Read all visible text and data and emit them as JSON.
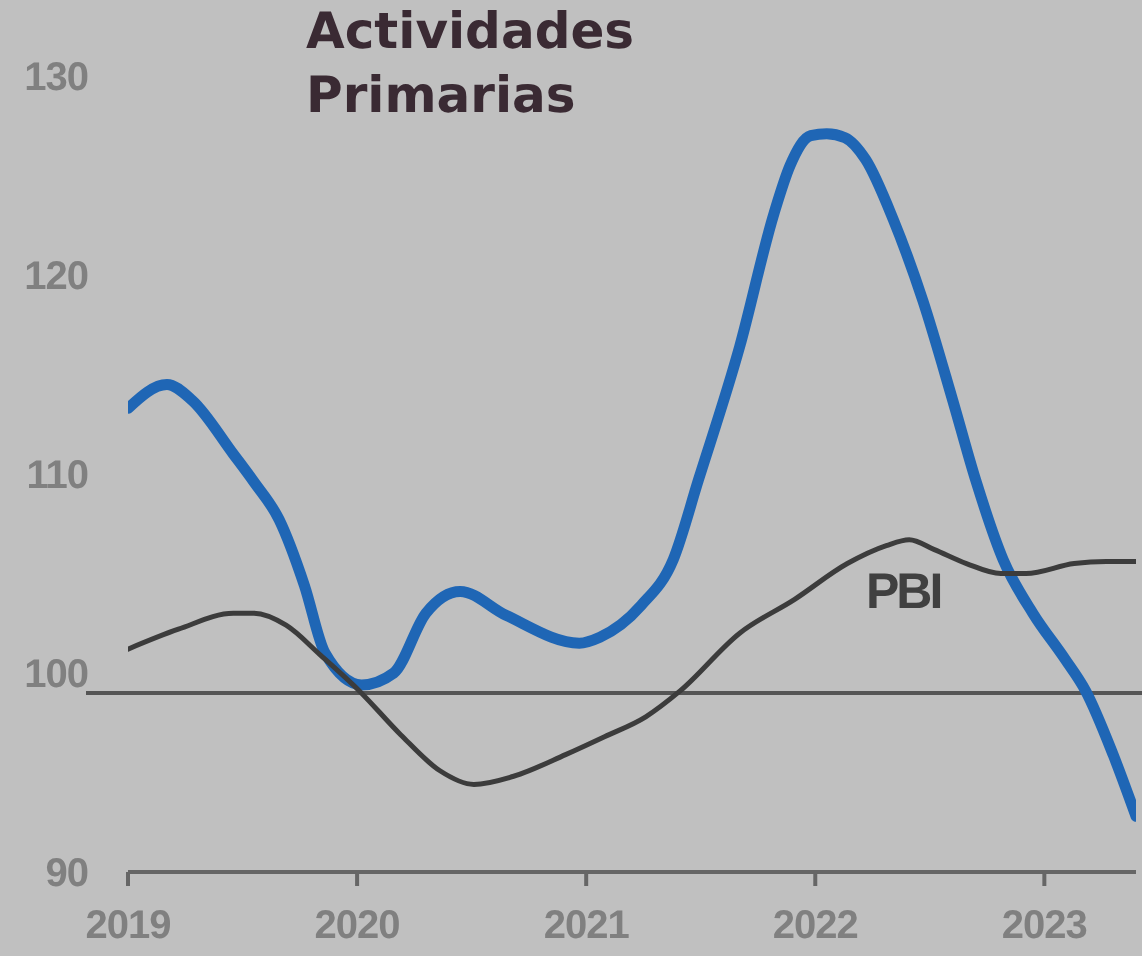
{
  "chart_data": {
    "type": "line",
    "title": "Actividades Primarias",
    "xlim": [
      2019,
      2023.4
    ],
    "xticks": [
      2019,
      2020,
      2021,
      2022,
      2023
    ],
    "ylim": [
      90,
      130
    ],
    "yticks": [
      90,
      100,
      110,
      120,
      130
    ],
    "ref_lines": [
      {
        "axis": "y",
        "value": 99,
        "color": "#555555"
      }
    ],
    "series": [
      {
        "color": "#1f66b5",
        "x": [
          2019.0,
          2019.17,
          2019.28,
          2019.46,
          2019.55,
          2019.66,
          2019.77,
          2019.86,
          2020.02,
          2020.16,
          2020.3,
          2020.45,
          2020.65,
          2020.97,
          2021.06,
          2021.24,
          2021.38,
          2021.49,
          2021.67,
          2021.82,
          2021.89,
          2021.98,
          2022.05,
          2022.13,
          2022.22,
          2022.34,
          2022.47,
          2022.6,
          2022.7,
          2022.82,
          2022.95,
          2023.09,
          2023.18,
          2023.3,
          2023.4
        ],
        "values": [
          113.3,
          114.5,
          113.7,
          111.0,
          109.6,
          107.7,
          104.4,
          101.0,
          99.4,
          100.0,
          103.0,
          104.1,
          102.9,
          101.5,
          101.8,
          103.4,
          105.7,
          109.7,
          116.4,
          123.1,
          125.5,
          127.0,
          127.1,
          126.9,
          125.8,
          122.8,
          118.7,
          113.7,
          109.7,
          105.7,
          103.0,
          100.7,
          99.1,
          95.9,
          92.8
        ]
      },
      {
        "name": "PBI",
        "color": "#3c3c3c",
        "x": [
          2019.0,
          2019.22,
          2019.46,
          2019.55,
          2019.69,
          2019.84,
          2020.01,
          2020.19,
          2020.36,
          2020.51,
          2020.68,
          2020.91,
          2021.08,
          2021.26,
          2021.41,
          2021.67,
          2021.91,
          2022.14,
          2022.31,
          2022.41,
          2022.52,
          2022.66,
          2022.81,
          2022.92,
          2023.13,
          2023.27,
          2023.4
        ],
        "values": [
          101.2,
          102.2,
          103.0,
          103.0,
          102.4,
          100.9,
          99.1,
          96.9,
          95.1,
          94.4,
          94.8,
          95.9,
          96.8,
          97.8,
          99.1,
          102.0,
          103.7,
          105.5,
          106.4,
          106.7,
          106.2,
          105.5,
          105.0,
          105.0,
          105.5,
          105.6,
          105.6
        ]
      }
    ]
  }
}
